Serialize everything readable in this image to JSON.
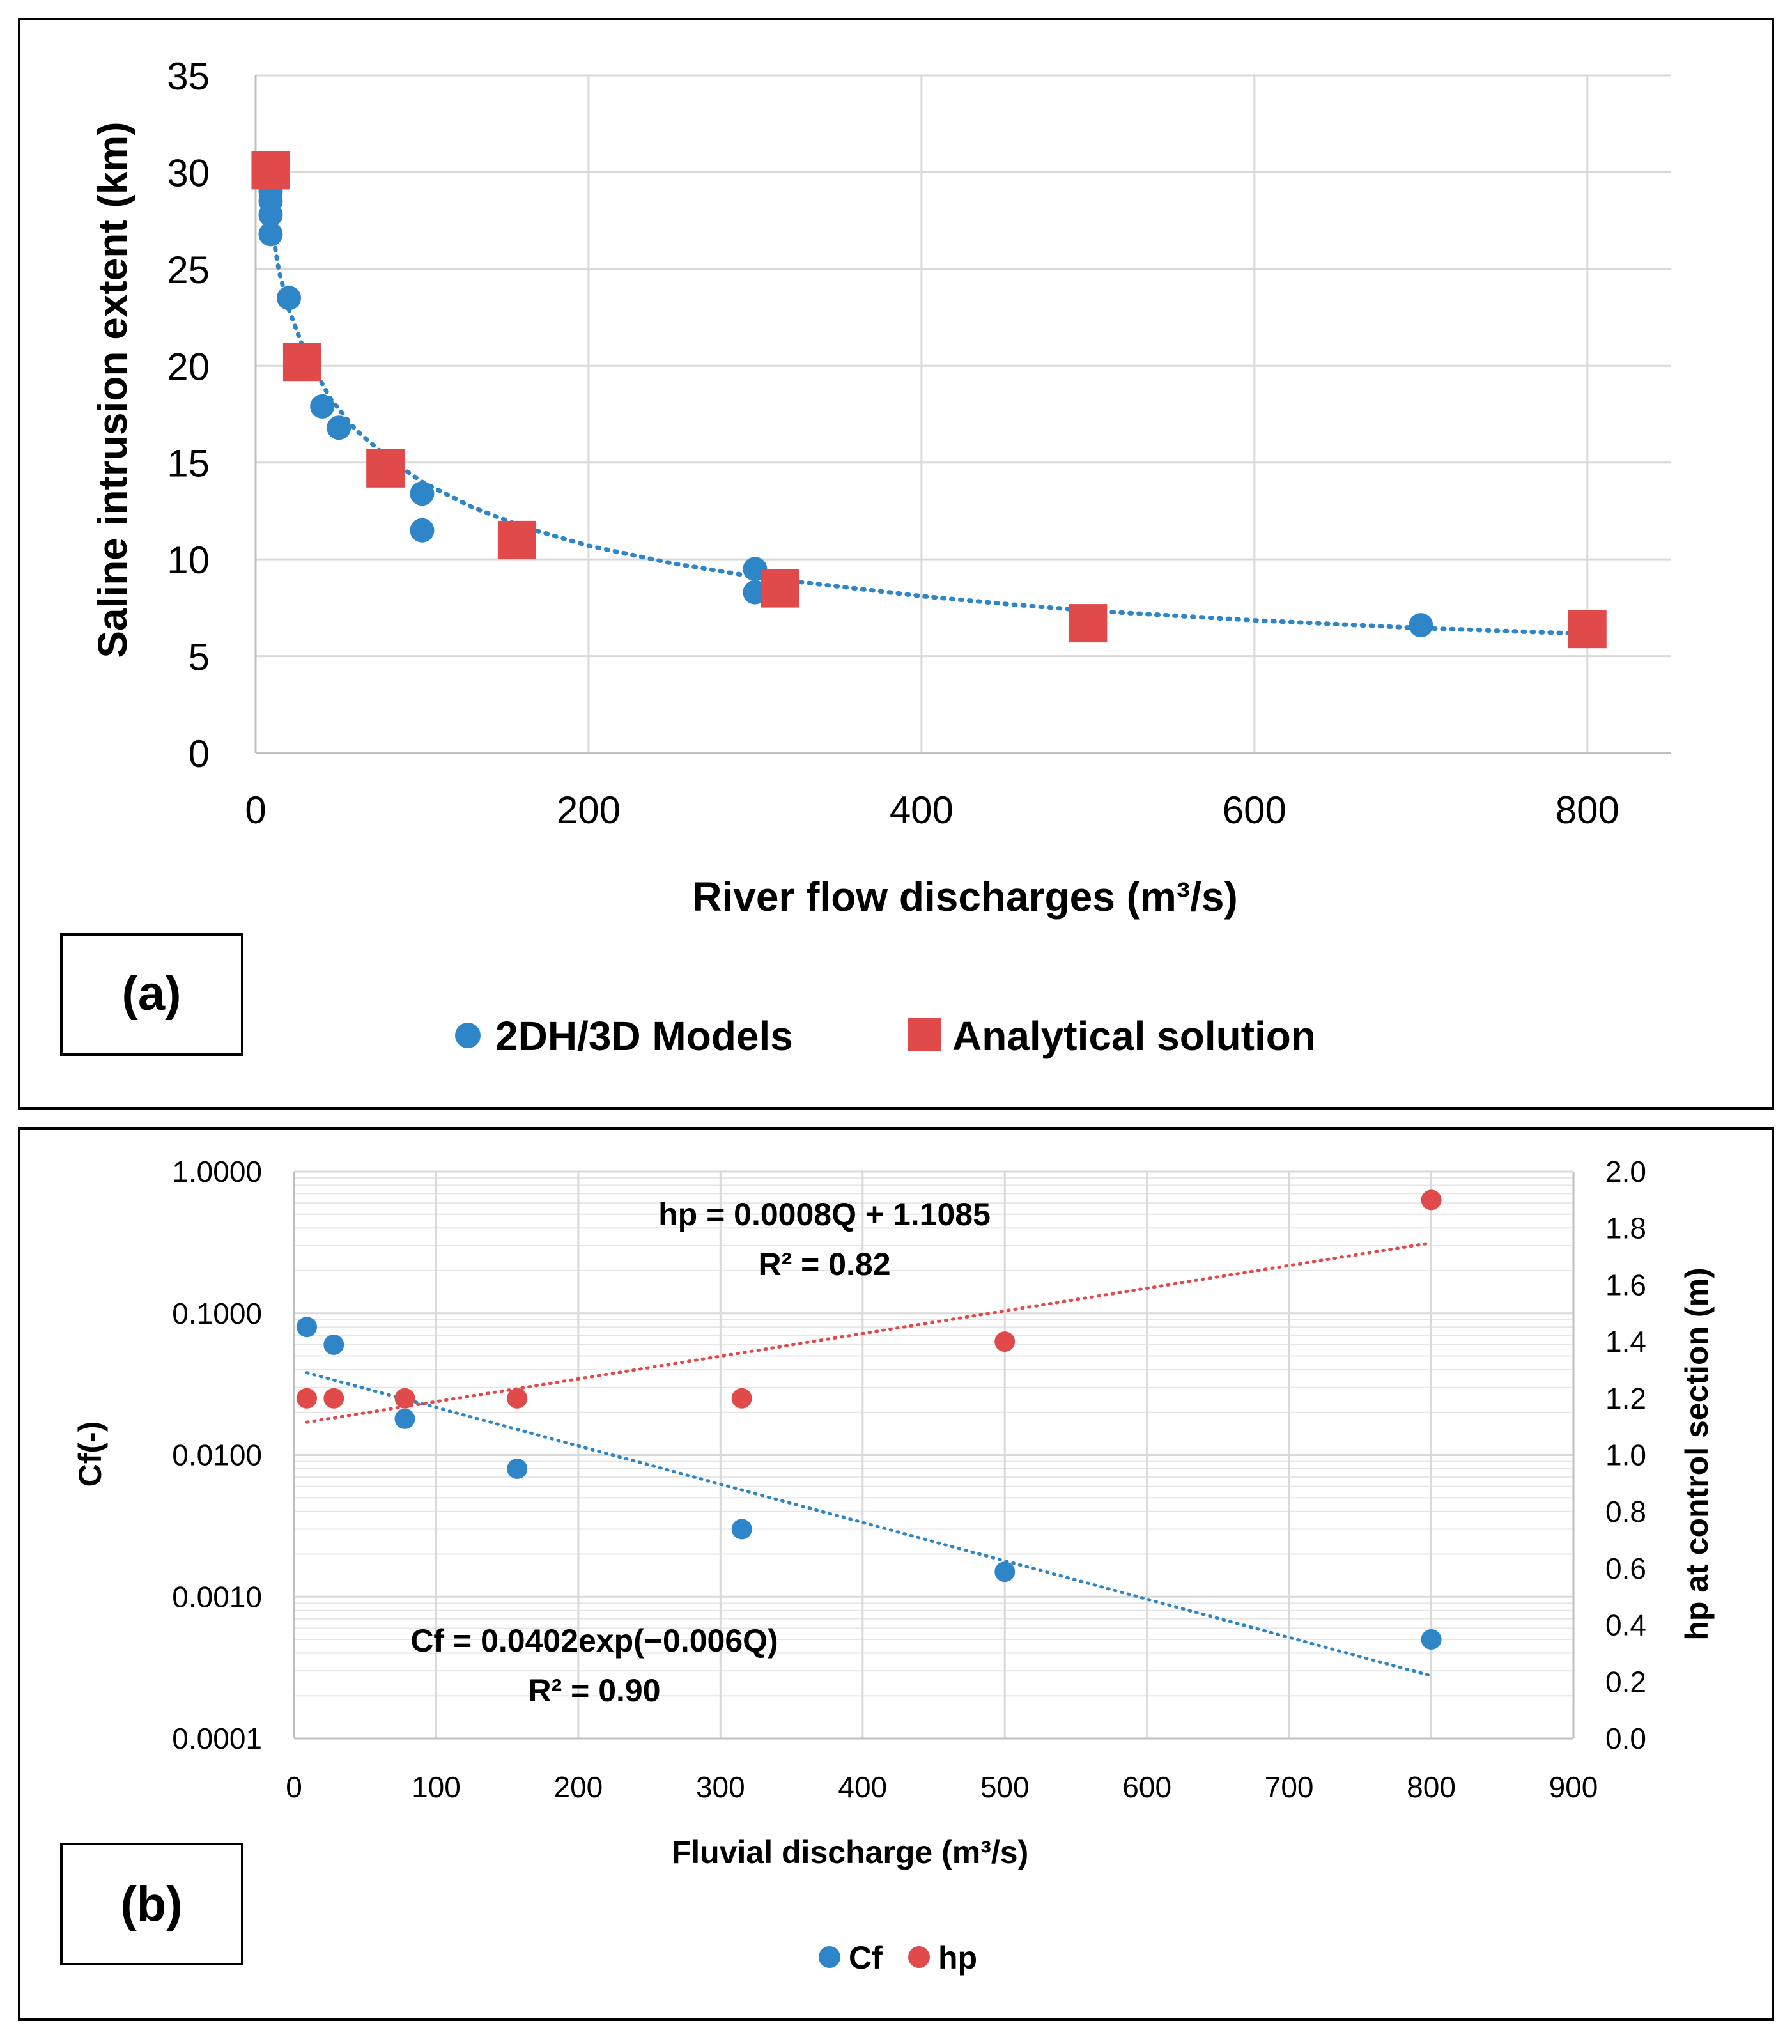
{
  "colors": {
    "blue": "#2e86c8",
    "red": "#e04a4a",
    "grid": "#d9d9d9",
    "minor_grid": "#e6e6e6",
    "axis": "#bfbfbf",
    "text": "#000000"
  },
  "panel_a": {
    "label": "(a)"
  },
  "panel_b": {
    "label": "(b)"
  },
  "chart_data": [
    {
      "type": "scatter",
      "panel": "a",
      "title": "",
      "xlabel": "River flow discharges (m³/s)",
      "ylabel": "Saline intrusion extent (km)",
      "xlim": [
        0,
        850
      ],
      "ylim": [
        0,
        35
      ],
      "xticks": [
        0,
        200,
        400,
        600,
        800
      ],
      "xtick_labels": [
        "0",
        "200",
        "400",
        "600",
        "800"
      ],
      "yticks": [
        0,
        5,
        10,
        15,
        20,
        25,
        30,
        35
      ],
      "ytick_labels": [
        "0",
        "5",
        "10",
        "15",
        "20",
        "25",
        "30",
        "35"
      ],
      "grid": true,
      "legend_position": "bottom",
      "series": [
        {
          "name": "2DH/3D Models",
          "marker": "circle",
          "color": "#2e86c8",
          "x": [
            9,
            9,
            9,
            9,
            20,
            40,
            50,
            100,
            100,
            300,
            300,
            500,
            700
          ],
          "y": [
            29.0,
            28.5,
            27.8,
            26.8,
            23.5,
            17.9,
            16.8,
            13.4,
            11.5,
            9.5,
            8.3,
            7.0,
            6.6
          ]
        },
        {
          "name": "Analytical solution",
          "marker": "square",
          "color": "#e04a4a",
          "x": [
            9,
            28,
            78,
            157,
            315,
            500,
            800
          ],
          "y": [
            30.1,
            20.2,
            14.7,
            11.0,
            8.5,
            6.7,
            6.4
          ]
        }
      ],
      "trendline": {
        "style": "dotted",
        "color": "#2e86c8",
        "x": [
          10,
          14,
          20,
          30,
          45,
          60,
          80,
          100,
          130,
          160,
          200,
          250,
          300,
          350,
          400,
          450,
          500,
          550,
          600,
          650,
          700,
          750,
          800
        ],
        "y": [
          27.0,
          24.9,
          22.9,
          20.6,
          18.3,
          16.7,
          15.2,
          14.0,
          12.7,
          11.7,
          10.7,
          9.8,
          9.1,
          8.6,
          8.1,
          7.7,
          7.35,
          7.1,
          6.85,
          6.65,
          6.45,
          6.3,
          6.15
        ]
      }
    },
    {
      "type": "scatter",
      "panel": "b",
      "title": "",
      "xlabel": "Fluvial discharge (m³/s)",
      "ylabel_left": "Cf(-)",
      "ylabel_right": "hp at control section (m)",
      "xlim": [
        0,
        900
      ],
      "xticks": [
        0,
        100,
        200,
        300,
        400,
        500,
        600,
        700,
        800,
        900
      ],
      "xtick_labels": [
        "0",
        "100",
        "200",
        "300",
        "400",
        "500",
        "600",
        "700",
        "800",
        "900"
      ],
      "ylim_left": [
        0.0001,
        1.0
      ],
      "yscale_left": "log",
      "yticks_left": [
        0.0001,
        0.001,
        0.01,
        0.1,
        1.0
      ],
      "ytick_labels_left": [
        "0.0001",
        "0.0010",
        "0.0100",
        "0.1000",
        "1.0000"
      ],
      "ylim_right": [
        0.0,
        2.0
      ],
      "yticks_right": [
        0.0,
        0.2,
        0.4,
        0.6,
        0.8,
        1.0,
        1.2,
        1.4,
        1.6,
        1.8,
        2.0
      ],
      "ytick_labels_right": [
        "0.0",
        "0.2",
        "0.4",
        "0.6",
        "0.8",
        "1.0",
        "1.2",
        "1.4",
        "1.6",
        "1.8",
        "2.0"
      ],
      "grid": true,
      "legend_position": "bottom",
      "series": [
        {
          "name": "Cf",
          "axis": "left",
          "marker": "circle",
          "color": "#2e86c8",
          "x": [
            9,
            28,
            78,
            157,
            315,
            500,
            800
          ],
          "y": [
            0.08,
            0.06,
            0.018,
            0.008,
            0.003,
            0.0015,
            0.0005
          ]
        },
        {
          "name": "hp",
          "axis": "right",
          "marker": "circle",
          "color": "#e04a4a",
          "x": [
            9,
            28,
            78,
            157,
            315,
            500,
            800
          ],
          "y": [
            1.2,
            1.2,
            1.2,
            1.2,
            1.2,
            1.4,
            1.9
          ]
        }
      ],
      "trendlines": [
        {
          "series": "Cf",
          "style": "dotted",
          "color": "#2e86c8",
          "x": [
            9,
            800
          ],
          "y": [
            0.0381,
            0.000277
          ]
        },
        {
          "series": "hp",
          "style": "dotted",
          "color": "#e04a4a",
          "x": [
            9,
            800
          ],
          "y": [
            1.1157,
            1.7485
          ]
        }
      ],
      "annotations": [
        "hp = 0.0008Q + 1.1085",
        "R² = 0.82",
        "Cf = 0.0402exp(−0.006Q)",
        "R² = 0.90"
      ]
    }
  ]
}
